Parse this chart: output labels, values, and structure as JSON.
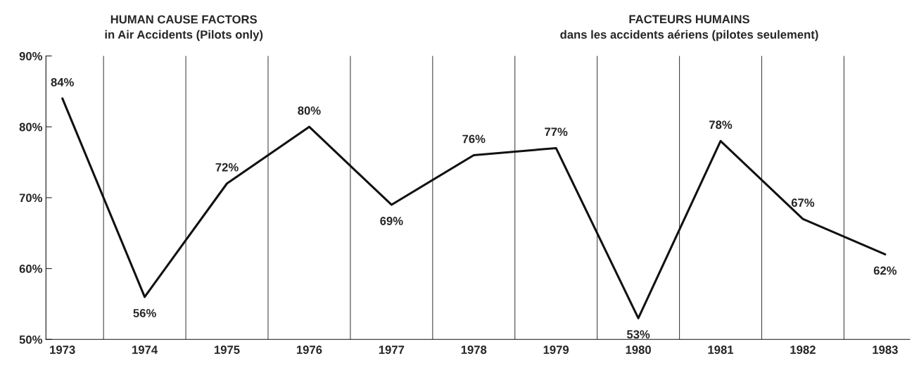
{
  "chart_data": {
    "type": "line",
    "title": "HUMAN CAUSE FACTORS\nin Air Accidents (Pilots only)",
    "subtitle": "FACTEURS HUMAINS\ndans les accidents aériens (pilotes seulement)",
    "categories": [
      "1973",
      "1974",
      "1975",
      "1976",
      "1977",
      "1978",
      "1979",
      "1980",
      "1981",
      "1982",
      "1983"
    ],
    "values": [
      84,
      56,
      72,
      80,
      69,
      76,
      77,
      53,
      78,
      67,
      62
    ],
    "value_labels": [
      "84%",
      "56%",
      "72%",
      "80%",
      "69%",
      "76%",
      "77%",
      "53%",
      "78%",
      "67%",
      "62%"
    ],
    "color": "#111111",
    "ylim": [
      50,
      90
    ],
    "yticks": [
      {
        "value": 50,
        "label": "50%"
      },
      {
        "value": 60,
        "label": "60%"
      },
      {
        "value": 70,
        "label": "70%"
      },
      {
        "value": 80,
        "label": "80%"
      },
      {
        "value": 90,
        "label": "90%"
      }
    ],
    "grid": "x",
    "legend": false,
    "marker": "none",
    "line_style": "solid"
  }
}
